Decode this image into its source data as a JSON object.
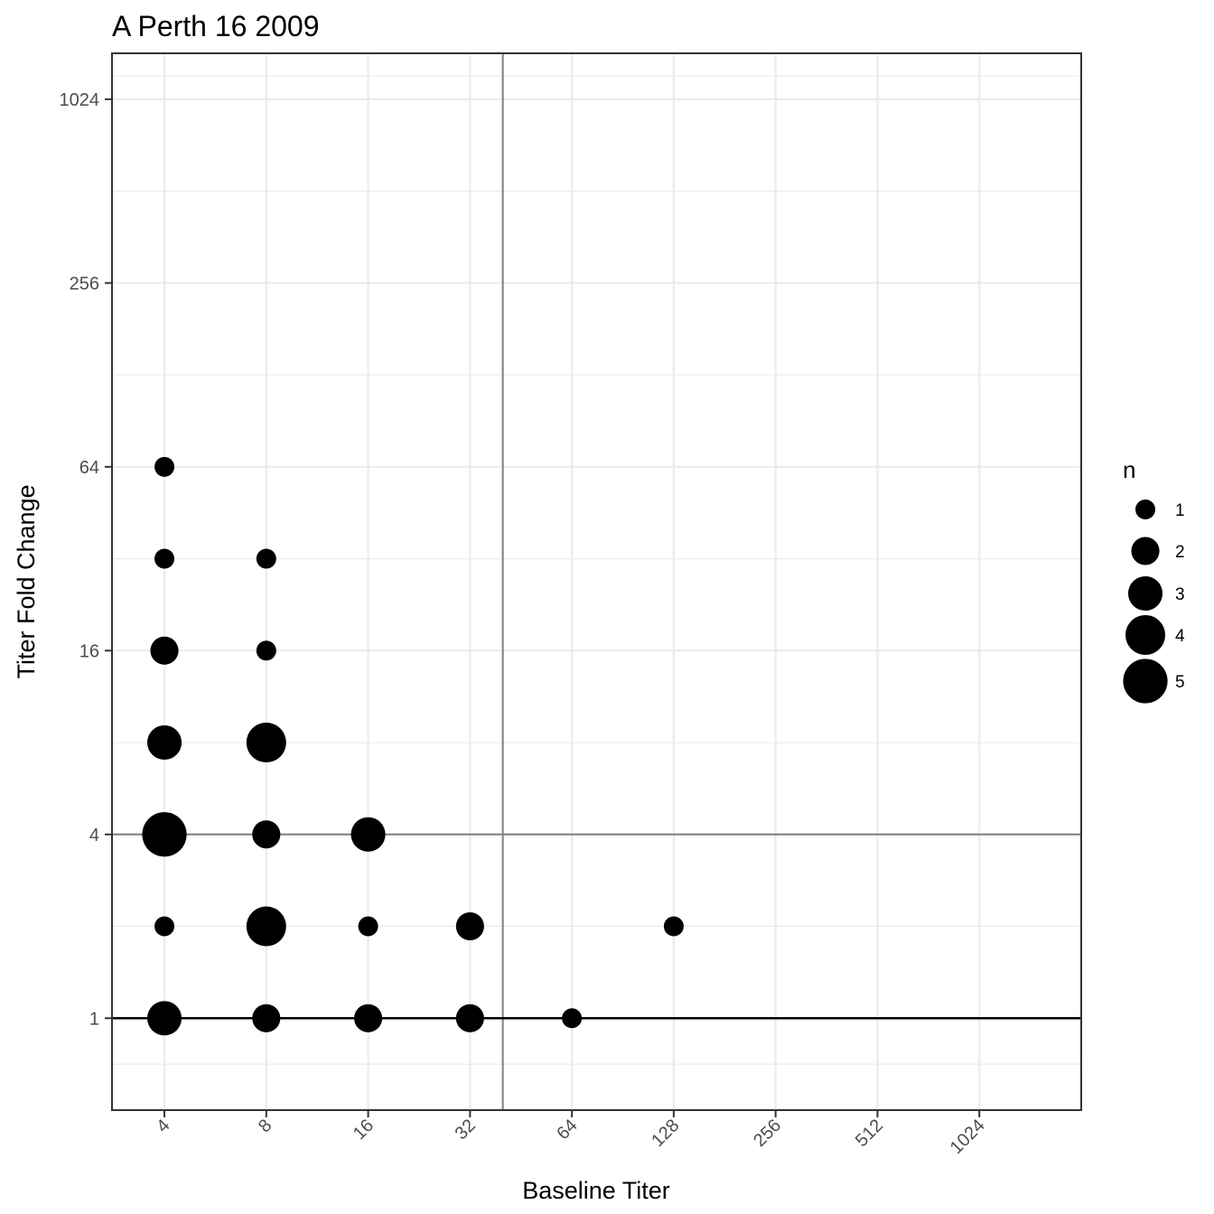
{
  "chart_data": {
    "type": "scatter",
    "title": "A Perth 16 2009",
    "xlabel": "Baseline Titer",
    "ylabel": "Titer Fold Change",
    "x_scale": "log2",
    "y_scale": "log2",
    "xlim": [
      2.8,
      2048
    ],
    "ylim": [
      0.5,
      1448
    ],
    "x_ticks": [
      4,
      8,
      16,
      32,
      64,
      128,
      256,
      512,
      1024
    ],
    "x_tick_labels": [
      "4",
      "8",
      "16",
      "32",
      "64",
      "128",
      "256",
      "512",
      "1024"
    ],
    "y_ticks": [
      1,
      4,
      16,
      64,
      256,
      1024
    ],
    "y_tick_labels": [
      "1",
      "4",
      "16",
      "64",
      "256",
      "1024"
    ],
    "grid": true,
    "reference_lines": {
      "vertical_x": 40,
      "horizontal_y": [
        4,
        1
      ]
    },
    "legend": {
      "title": "n",
      "position": "right",
      "sizes": [
        1,
        2,
        3,
        4,
        5
      ],
      "labels": [
        "1",
        "2",
        "3",
        "4",
        "5"
      ]
    },
    "points": [
      {
        "x": 4,
        "y": 64,
        "n": 1
      },
      {
        "x": 4,
        "y": 32,
        "n": 1
      },
      {
        "x": 4,
        "y": 16,
        "n": 2
      },
      {
        "x": 4,
        "y": 8,
        "n": 3
      },
      {
        "x": 4,
        "y": 4,
        "n": 5
      },
      {
        "x": 4,
        "y": 2,
        "n": 1
      },
      {
        "x": 4,
        "y": 1,
        "n": 3
      },
      {
        "x": 8,
        "y": 32,
        "n": 1
      },
      {
        "x": 8,
        "y": 16,
        "n": 1
      },
      {
        "x": 8,
        "y": 8,
        "n": 4
      },
      {
        "x": 8,
        "y": 4,
        "n": 2
      },
      {
        "x": 8,
        "y": 2,
        "n": 4
      },
      {
        "x": 8,
        "y": 1,
        "n": 2
      },
      {
        "x": 16,
        "y": 4,
        "n": 3
      },
      {
        "x": 16,
        "y": 2,
        "n": 1
      },
      {
        "x": 16,
        "y": 1,
        "n": 2
      },
      {
        "x": 32,
        "y": 2,
        "n": 2
      },
      {
        "x": 32,
        "y": 1,
        "n": 2
      },
      {
        "x": 64,
        "y": 1,
        "n": 1
      },
      {
        "x": 128,
        "y": 2,
        "n": 1
      }
    ]
  }
}
